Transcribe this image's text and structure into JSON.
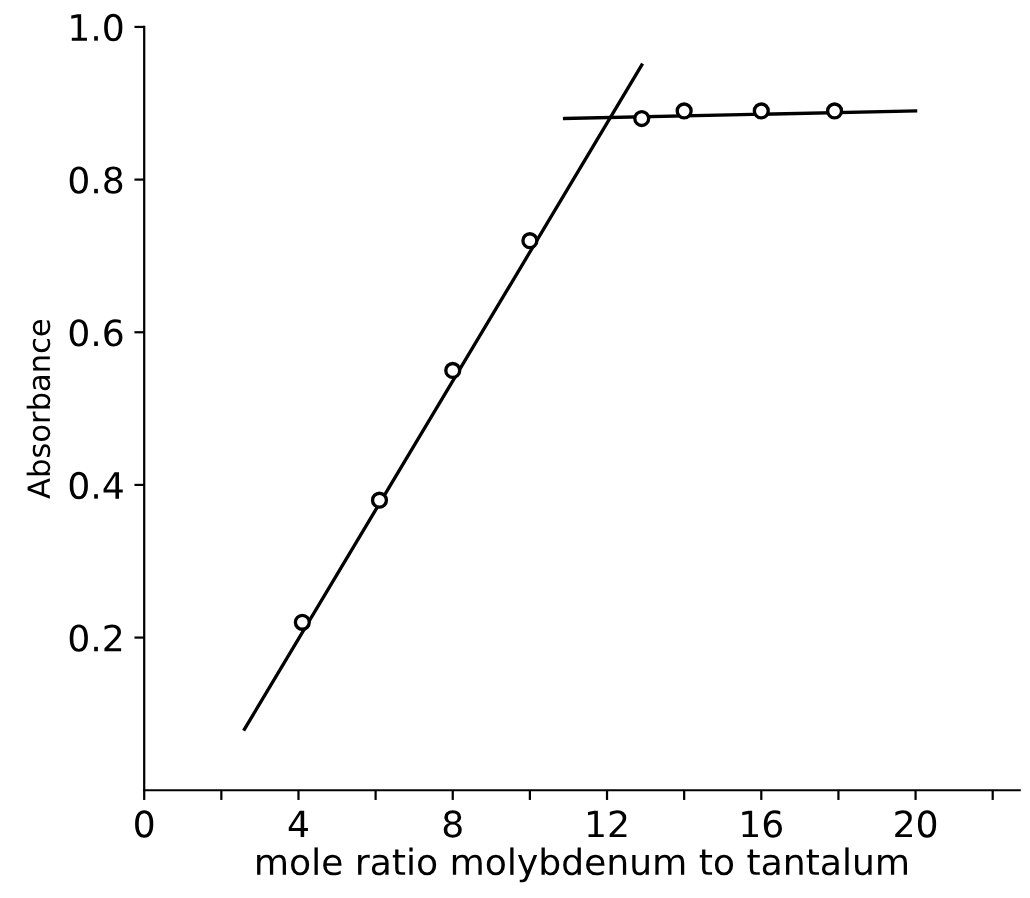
{
  "chart_data": {
    "type": "scatter",
    "xlabel": "mole ratio molybdenum to tantalum",
    "ylabel": "Absorbance",
    "xlim": [
      0,
      22.7
    ],
    "ylim": [
      0,
      1.0
    ],
    "xticks": [
      0,
      {
        "value": 2,
        "label": null
      },
      4,
      {
        "value": 6,
        "label": null
      },
      8,
      {
        "value": 10,
        "label": null
      },
      12,
      {
        "value": 14,
        "label": null
      },
      16,
      {
        "value": 18,
        "label": null
      },
      20,
      {
        "value": 22,
        "label": null
      }
    ],
    "yticks": [
      0.2,
      0.4,
      0.6,
      0.8,
      {
        "value": 1.0,
        "label": "1.0"
      }
    ],
    "grid": false,
    "legend": false,
    "marker": "circle",
    "series": [
      {
        "color": "#000000",
        "x": [
          4.1,
          6.1,
          8.0,
          10.0,
          12.9,
          14.0,
          16.0,
          17.9
        ],
        "values": [
          0.22,
          0.38,
          0.55,
          0.72,
          0.88,
          0.89,
          0.89,
          0.89
        ]
      },
      {
        "type": "line",
        "color": "#000000",
        "line_style": "solid",
        "marker": "none",
        "x": [
          2.6,
          12.9
        ],
        "values": [
          0.08,
          0.95
        ]
      },
      {
        "type": "line",
        "color": "#000000",
        "line_style": "solid",
        "marker": "none",
        "x": [
          10.9,
          20.0
        ],
        "values": [
          0.88,
          0.89
        ]
      }
    ]
  }
}
